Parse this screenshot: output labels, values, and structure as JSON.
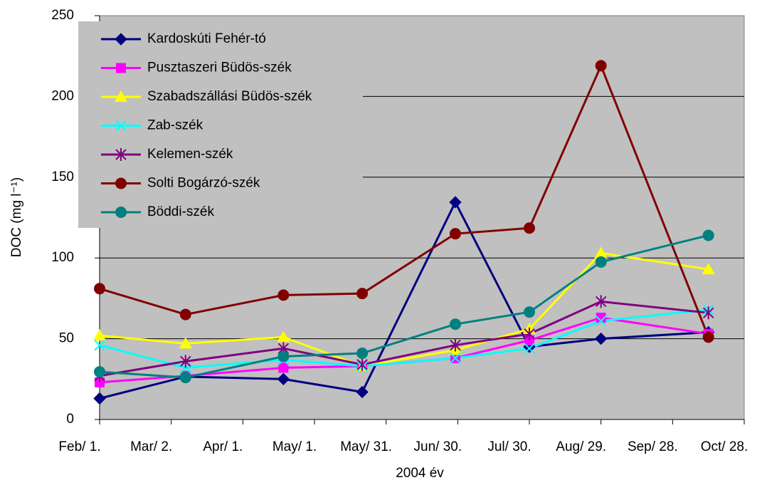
{
  "chart_data": {
    "type": "line",
    "x_label": "2004 év",
    "y_label": "DOC (mg l⁻¹)",
    "x": [
      32,
      68,
      109,
      142,
      181,
      212,
      242,
      287
    ],
    "xlim": [
      32,
      302
    ],
    "xticks": [
      {
        "value": 32,
        "label": "Feb/ 1."
      },
      {
        "value": 62,
        "label": "Mar/ 2."
      },
      {
        "value": 92,
        "label": "Apr/ 1."
      },
      {
        "value": 122,
        "label": "May/ 1."
      },
      {
        "value": 152,
        "label": "May/ 31."
      },
      {
        "value": 182,
        "label": "Jun/ 30."
      },
      {
        "value": 212,
        "label": "Jul/ 30."
      },
      {
        "value": 242,
        "label": "Aug/ 29."
      },
      {
        "value": 272,
        "label": "Sep/ 28."
      },
      {
        "value": 302,
        "label": "Oct/ 28."
      }
    ],
    "ylim": [
      0,
      250
    ],
    "yticks": [
      0,
      50,
      100,
      150,
      200,
      250
    ],
    "grid": true,
    "legend": "upper left",
    "series": [
      {
        "name": "Kardoskúti Fehér-tó",
        "color": "#000080",
        "marker": "diamond",
        "values": [
          13,
          26.5,
          25,
          17,
          134.5,
          45,
          50,
          54
        ]
      },
      {
        "name": "Pusztaszeri Büdös-szék",
        "color": "#ff00ff",
        "marker": "square",
        "values": [
          23,
          27,
          32,
          33,
          38,
          49,
          63,
          53
        ]
      },
      {
        "name": "Szabadszállási Büdös-szék",
        "color": "#ffff00",
        "marker": "triangle",
        "values": [
          52,
          47,
          51,
          33,
          43,
          56,
          103,
          93
        ]
      },
      {
        "name": "Zab-szék",
        "color": "#00ffff",
        "marker": "x",
        "values": [
          46,
          32,
          37,
          33,
          38,
          44,
          61,
          68
        ]
      },
      {
        "name": "Kelemen-szék",
        "color": "#800080",
        "marker": "star",
        "values": [
          27,
          36,
          44,
          34,
          46,
          53,
          73,
          66
        ]
      },
      {
        "name": "Solti Bogárzó-szék",
        "color": "#800000",
        "marker": "circle",
        "values": [
          81,
          65,
          77,
          78,
          115,
          118.5,
          219,
          51
        ]
      },
      {
        "name": "Böddi-szék",
        "color": "#008080",
        "marker": "circle",
        "values": [
          29.5,
          26,
          39,
          41,
          59,
          66.5,
          97.5,
          114
        ]
      }
    ]
  }
}
